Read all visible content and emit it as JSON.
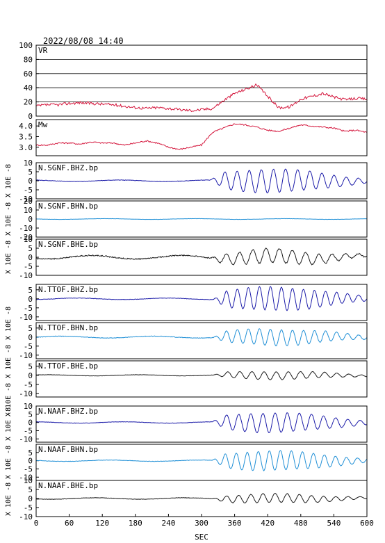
{
  "header": {
    "timestamp": "2022/08/08  14:40"
  },
  "colors": {
    "vr": "#d4163c",
    "mw": "#d4163c",
    "bhz": "#1a1aa8",
    "bhn": "#1f8fd6",
    "bhe": "#1a1a1a",
    "frame": "#000000",
    "grid": "#000000"
  },
  "chart_data": [
    {
      "type": "line",
      "title": "VR",
      "ylim": [
        0,
        100
      ],
      "yticks": [
        "0",
        "20",
        "40",
        "60",
        "80",
        "100"
      ],
      "grid": true,
      "xlim": [
        0,
        600
      ],
      "x": [
        0,
        20,
        40,
        60,
        80,
        100,
        120,
        140,
        160,
        180,
        200,
        220,
        240,
        260,
        280,
        300,
        320,
        340,
        360,
        380,
        400,
        420,
        440,
        460,
        480,
        500,
        520,
        540,
        560,
        580,
        600
      ],
      "series": [
        {
          "values": [
            14,
            16,
            16,
            18,
            19,
            18,
            17,
            16,
            14,
            12,
            11,
            12,
            11,
            9,
            8,
            9,
            11,
            22,
            32,
            38,
            44,
            28,
            12,
            13,
            24,
            28,
            32,
            27,
            23,
            25,
            24
          ]
        }
      ]
    },
    {
      "type": "line",
      "title": "Mw",
      "ylim": [
        2.6,
        4.3
      ],
      "yticks": [
        "3.0",
        "3.5",
        "4.0"
      ],
      "xlim": [
        0,
        600
      ],
      "x": [
        0,
        20,
        40,
        60,
        80,
        100,
        120,
        140,
        160,
        180,
        200,
        220,
        240,
        260,
        280,
        300,
        320,
        340,
        360,
        380,
        400,
        420,
        440,
        460,
        480,
        500,
        520,
        540,
        560,
        580,
        600
      ],
      "series": [
        {
          "values": [
            3.1,
            3.1,
            3.2,
            3.2,
            3.15,
            3.25,
            3.2,
            3.2,
            3.1,
            3.2,
            3.3,
            3.2,
            3.0,
            2.9,
            3.0,
            3.1,
            3.7,
            3.9,
            4.1,
            4.05,
            3.95,
            3.8,
            3.75,
            3.9,
            4.05,
            4.0,
            3.95,
            3.9,
            3.75,
            3.8,
            3.7
          ]
        }
      ]
    },
    {
      "type": "line",
      "title": "N.SGNF.BHZ.bp",
      "ylim": [
        -10,
        10
      ],
      "yticks": [
        "-10",
        "-5",
        "0",
        "5",
        "10"
      ],
      "xlim": [
        0,
        600
      ],
      "onset": 315,
      "amp": 6.5,
      "period": 22,
      "noise": 0.4,
      "series": [
        {
          "color": "bhz"
        }
      ]
    },
    {
      "type": "line",
      "title": "N.SGNF.BHN.bp",
      "ylim": [
        -20,
        20
      ],
      "yticks": [
        "-20",
        "-10",
        "0",
        "10",
        "20"
      ],
      "xlim": [
        0,
        600
      ],
      "onset": 9999,
      "amp": 0,
      "period": 22,
      "noise": 0.4,
      "series": [
        {
          "color": "bhn"
        }
      ]
    },
    {
      "type": "line",
      "title": "N.SGNF.BHE.bp",
      "ylim": [
        -10,
        10
      ],
      "yticks": [
        "-10",
        "-5",
        "0",
        "5",
        "10"
      ],
      "xlim": [
        0,
        600
      ],
      "onset": 315,
      "amp": 4,
      "period": 24,
      "noise": 1.0,
      "series": [
        {
          "color": "bhe"
        }
      ]
    },
    {
      "type": "line",
      "title": "N.TTOF.BHZ.bp",
      "ylim": [
        -12,
        8
      ],
      "yticks": [
        "-10",
        "-5",
        "0",
        "5"
      ],
      "xlim": [
        0,
        600
      ],
      "onset": 320,
      "amp": 6.5,
      "period": 20,
      "noise": 0.4,
      "series": [
        {
          "color": "bhz"
        }
      ]
    },
    {
      "type": "line",
      "title": "N.TTOF.BHN.bp",
      "ylim": [
        -12,
        8
      ],
      "yticks": [
        "-10",
        "-5",
        "0",
        "5"
      ],
      "xlim": [
        0,
        600
      ],
      "onset": 320,
      "amp": 4.5,
      "period": 20,
      "noise": 0.5,
      "series": [
        {
          "color": "bhn"
        }
      ]
    },
    {
      "type": "line",
      "title": "N.TTOF.BHE.bp",
      "ylim": [
        -12,
        8
      ],
      "yticks": [
        "-10",
        "-5",
        "0",
        "5"
      ],
      "xlim": [
        0,
        600
      ],
      "onset": 320,
      "amp": 2.2,
      "period": 22,
      "noise": 0.3,
      "series": [
        {
          "color": "bhe"
        }
      ]
    },
    {
      "type": "line",
      "title": "N.NAAF.BHZ.bp",
      "ylim": [
        -12,
        10
      ],
      "yticks": [
        "-10",
        "-5",
        "0",
        "5",
        "10"
      ],
      "xlim": [
        0,
        600
      ],
      "onset": 318,
      "amp": 6,
      "period": 22,
      "noise": 0.4,
      "series": [
        {
          "color": "bhz"
        }
      ]
    },
    {
      "type": "line",
      "title": "N.NAAF.BHN.bp",
      "ylim": [
        -12,
        10
      ],
      "yticks": [
        "-10",
        "-5",
        "0",
        "5"
      ],
      "xlim": [
        0,
        600
      ],
      "onset": 318,
      "amp": 6,
      "period": 20,
      "noise": 0.4,
      "series": [
        {
          "color": "bhn"
        }
      ]
    },
    {
      "type": "line",
      "title": "N.NAAF.BHE.bp",
      "ylim": [
        -10,
        10
      ],
      "yticks": [
        "-10",
        "-5",
        "0",
        "5",
        "10"
      ],
      "xlim": [
        0,
        600
      ],
      "onset": 318,
      "amp": 2.5,
      "period": 22,
      "noise": 0.4,
      "series": [
        {
          "color": "bhe"
        }
      ]
    }
  ],
  "y_unit_labels": [
    "X 10E -8",
    "X 10E -8",
    "X 10E -8",
    "X 10E -8",
    "X 10E -8",
    "X 10E -8",
    "X 10E -8",
    "X 10E -8",
    "X 10E -8"
  ],
  "x_axis": {
    "ticks": [
      0,
      60,
      120,
      180,
      240,
      300,
      360,
      420,
      480,
      540,
      600
    ],
    "tick_labels": [
      "0",
      "60",
      "120",
      "180",
      "240",
      "300",
      "360",
      "420",
      "480",
      "540",
      "600"
    ],
    "label": "SEC"
  }
}
